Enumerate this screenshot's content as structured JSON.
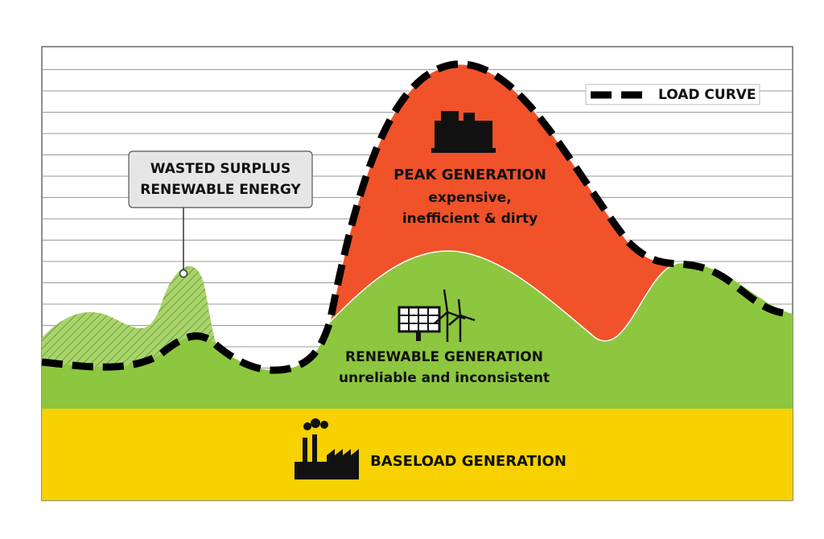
{
  "callout": {
    "lines": [
      "WASTED SURPLUS",
      "RENEWABLE ENERGY"
    ]
  },
  "legend": {
    "label": "LOAD CURVE"
  },
  "peak": {
    "title": "PEAK GENERATION",
    "lines": [
      "expensive,",
      "inefficient & dirty"
    ]
  },
  "renewable": {
    "title": "RENEWABLE GENERATION",
    "subtitle": "unreliable and inconsistent"
  },
  "baseload": {
    "title": "BASELOAD GENERATION"
  }
}
